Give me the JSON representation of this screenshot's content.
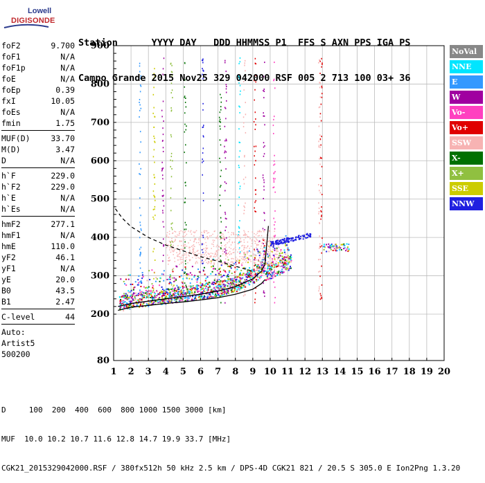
{
  "logo": {
    "line1": "Lowell",
    "line2": "DIGISONDE"
  },
  "header": {
    "row1": "Station      YYYY DAY   DDD HHMMSS P1  FFS S AXN PPS IGA PS",
    "row2": "Campo Grande 2015 Nov25 329 042000 RSF 005 2 713 100 03+ 36"
  },
  "params": {
    "group1": [
      {
        "label": "foF2",
        "value": "9.700"
      },
      {
        "label": "foF1",
        "value": "N/A"
      },
      {
        "label": "foF1p",
        "value": "N/A"
      },
      {
        "label": "foE",
        "value": "N/A"
      },
      {
        "label": "foEp",
        "value": "0.39"
      },
      {
        "label": "fxI",
        "value": "10.05"
      },
      {
        "label": "foEs",
        "value": "N/A"
      },
      {
        "label": "fmin",
        "value": "1.75"
      }
    ],
    "group2": [
      {
        "label": "MUF(D)",
        "value": "33.70"
      },
      {
        "label": "M(D)",
        "value": "3.47"
      },
      {
        "label": "D",
        "value": "N/A"
      }
    ],
    "group3": [
      {
        "label": "h`F",
        "value": "229.0"
      },
      {
        "label": "h`F2",
        "value": "229.0"
      },
      {
        "label": "h`E",
        "value": "N/A"
      },
      {
        "label": "h`Es",
        "value": "N/A"
      }
    ],
    "group4": [
      {
        "label": "hmF2",
        "value": "277.1"
      },
      {
        "label": "hmF1",
        "value": "N/A"
      },
      {
        "label": "hmE",
        "value": "110.0"
      },
      {
        "label": "yF2",
        "value": "46.1"
      },
      {
        "label": "yF1",
        "value": "N/A"
      },
      {
        "label": "yE",
        "value": "20.0"
      },
      {
        "label": "B0",
        "value": "43.5"
      },
      {
        "label": "B1",
        "value": "2.47"
      }
    ],
    "group5": [
      {
        "label": "C-level",
        "value": "44"
      }
    ],
    "auto_lines": [
      "Auto:",
      "Artist5",
      "500200"
    ]
  },
  "legend": [
    {
      "label": "NoVal",
      "bg": "#888888",
      "fg": "#ffffff"
    },
    {
      "label": "NNE",
      "bg": "#00e5ff",
      "fg": "#ffffff"
    },
    {
      "label": "E",
      "bg": "#3399ff",
      "fg": "#ffffff"
    },
    {
      "label": "W",
      "bg": "#a000a0",
      "fg": "#ffffff"
    },
    {
      "label": "Vo-",
      "bg": "#ff40c0",
      "fg": "#ffffff"
    },
    {
      "label": "Vo+",
      "bg": "#e00000",
      "fg": "#ffffff"
    },
    {
      "label": "SSW",
      "bg": "#f7b3b3",
      "fg": "#ffffff"
    },
    {
      "label": "X-",
      "bg": "#007000",
      "fg": "#ffffff"
    },
    {
      "label": "X+",
      "bg": "#90c040",
      "fg": "#ffffff"
    },
    {
      "label": "SSE",
      "bg": "#cccc00",
      "fg": "#ffffff"
    },
    {
      "label": "NNW",
      "bg": "#2020e0",
      "fg": "#ffffff"
    }
  ],
  "footer": {
    "line1": "D     100  200  400  600  800 1000 1500 3000 [km]",
    "line2": "MUF  10.0 10.2 10.7 11.6 12.8 14.7 19.9 33.7 [MHz]",
    "line3": "CGK21_2015329042000.RSF / 380fx512h 50 kHz 2.5 km / DPS-4D CGK21 821 / 20.5 S 305.0 E Ion2Png 1.3.20"
  },
  "chart_data": {
    "type": "scatter",
    "title": "",
    "xlabel": "",
    "ylabel": "",
    "xlim": [
      1,
      20
    ],
    "ylim": [
      80,
      900
    ],
    "x_ticks": [
      1,
      2,
      3,
      4,
      5,
      6,
      7,
      8,
      9,
      10,
      11,
      12,
      13,
      14,
      15,
      16,
      17,
      18,
      19,
      20
    ],
    "y_ticks": [
      80,
      200,
      300,
      400,
      500,
      600,
      700,
      800,
      900
    ],
    "grid": true,
    "series": [
      {
        "name": "trace-virtual-height",
        "style": "solid",
        "color": "#000000",
        "x": [
          1.25,
          2,
          3,
          4,
          5,
          6,
          7,
          8,
          9,
          9.5,
          9.7
        ],
        "y": [
          220,
          228,
          234,
          240,
          246,
          252,
          260,
          272,
          292,
          312,
          330
        ]
      },
      {
        "name": "profile-true-height",
        "style": "solid",
        "color": "#000000",
        "x": [
          1.25,
          2,
          3,
          4,
          5,
          6,
          7,
          8,
          9,
          9.5,
          9.7
        ],
        "y": [
          210,
          218,
          223,
          228,
          232,
          237,
          243,
          252,
          265,
          280,
          290
        ]
      },
      {
        "name": "spike",
        "style": "solid",
        "color": "#000000",
        "x": [
          9.7,
          9.8,
          9.9
        ],
        "y": [
          330,
          380,
          430
        ]
      },
      {
        "name": "dashed-curve",
        "style": "dashed",
        "color": "#000000",
        "x": [
          1.1,
          1.5,
          2,
          3,
          4,
          5,
          6,
          7,
          8,
          9
        ],
        "y": [
          475,
          450,
          428,
          400,
          380,
          365,
          350,
          338,
          325,
          312
        ]
      }
    ]
  }
}
